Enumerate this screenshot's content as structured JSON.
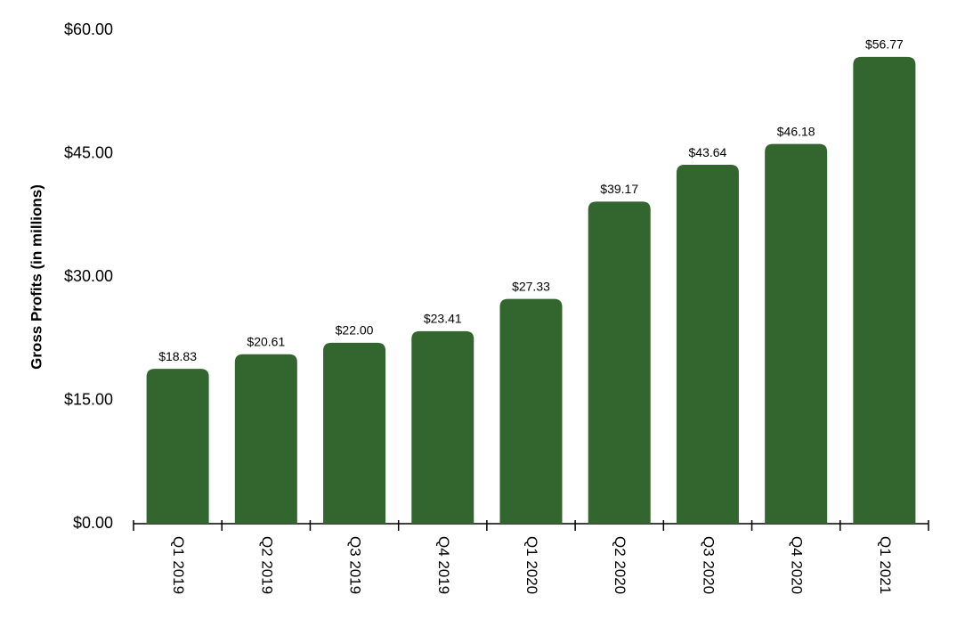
{
  "chart_data": {
    "type": "bar",
    "y_label": "Gross Profits (in millions)",
    "categories": [
      "Q1 2019",
      "Q2 2019",
      "Q3 2019",
      "Q4 2019",
      "Q1 2020",
      "Q2 2020",
      "Q3 2020",
      "Q4 2020",
      "Q1 2021"
    ],
    "values": [
      18.83,
      20.61,
      22.0,
      23.41,
      27.33,
      39.17,
      43.64,
      46.18,
      56.77
    ],
    "value_labels": [
      "$18.83",
      "$20.61",
      "$22.00",
      "$23.41",
      "$27.33",
      "$39.17",
      "$43.64",
      "$46.18",
      "$56.77"
    ],
    "color": "#33652e",
    "ylim": [
      0,
      60
    ],
    "yticks": [
      {
        "value": 0,
        "label": "$0.00"
      },
      {
        "value": 15,
        "label": "$15.00"
      },
      {
        "value": 30,
        "label": "$30.00"
      },
      {
        "value": 45,
        "label": "$45.00"
      },
      {
        "value": 60,
        "label": "$60.00"
      }
    ],
    "grid": false
  }
}
